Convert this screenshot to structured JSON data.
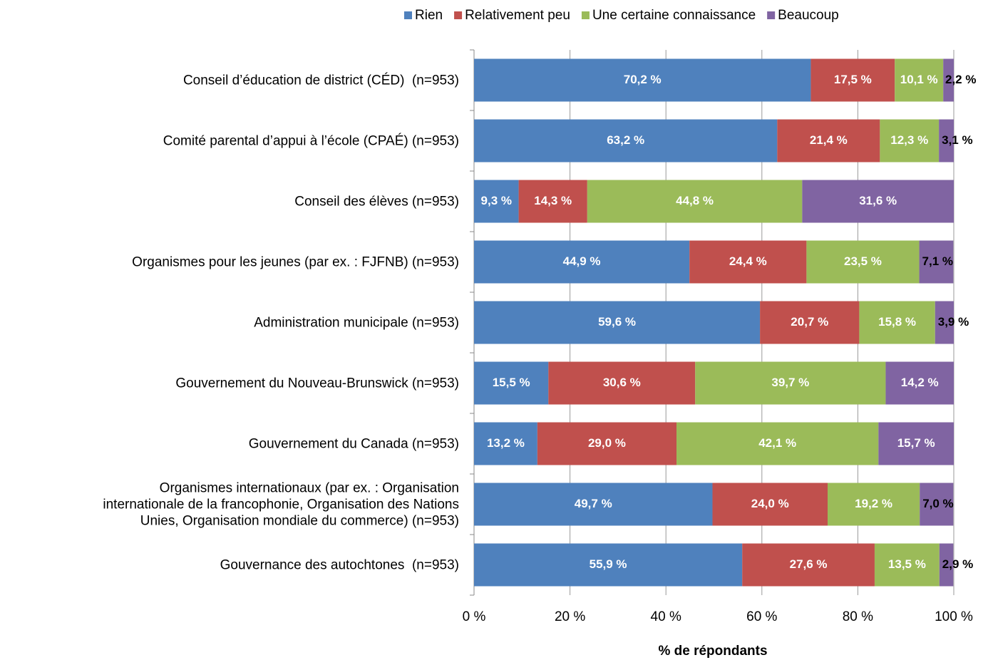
{
  "chart_data": {
    "type": "stacked_barh",
    "xlabel": "% de répondants",
    "categories": [
      "Conseil d’éducation de district (CÉD)  (n=953)",
      "Comité parental d’appui à l’école (CPAÉ) (n=953)",
      "Conseil des élèves (n=953)",
      "Organismes pour les jeunes (par ex. : FJFNB) (n=953)",
      "Administration municipale (n=953)",
      "Gouvernement du Nouveau-Brunswick (n=953)",
      "Gouvernement du Canada (n=953)",
      "Organismes internationaux (par ex. : Organisation\ninternationale de la francophonie, Organisation des Nations\nUnies, Organisation mondiale du commerce) (n=953)",
      "Gouvernance des autochtones  (n=953)"
    ],
    "series": [
      {
        "name": "Rien",
        "color": "#4f81bd",
        "values": [
          70.2,
          63.2,
          9.3,
          44.9,
          59.6,
          15.5,
          13.2,
          49.7,
          55.9
        ],
        "value_labels": [
          "70,2 %",
          "63,2 %",
          "9,3 %",
          "44,9 %",
          "59,6 %",
          "15,5 %",
          "13,2 %",
          "49,7 %",
          "55,9 %"
        ]
      },
      {
        "name": "Relativement peu",
        "color": "#c0504d",
        "values": [
          17.5,
          21.4,
          14.3,
          24.4,
          20.7,
          30.6,
          29.0,
          24.0,
          27.6
        ],
        "value_labels": [
          "17,5 %",
          "21,4 %",
          "14,3 %",
          "24,4 %",
          "20,7 %",
          "30,6 %",
          "29,0 %",
          "24,0 %",
          "27,6 %"
        ]
      },
      {
        "name": "Une certaine connaissance",
        "color": "#9bbb59",
        "values": [
          10.1,
          12.3,
          44.8,
          23.5,
          15.8,
          39.7,
          42.1,
          19.2,
          13.5
        ],
        "value_labels": [
          "10,1 %",
          "12,3 %",
          "44,8 %",
          "23,5 %",
          "15,8 %",
          "39,7 %",
          "42,1 %",
          "19,2 %",
          "13,5 %"
        ]
      },
      {
        "name": "Beaucoup",
        "color": "#8064a2",
        "values": [
          2.2,
          3.1,
          31.6,
          7.1,
          3.9,
          14.2,
          15.7,
          7.0,
          2.9
        ],
        "value_labels": [
          "2,2 %",
          "3,1 %",
          "31,6 %",
          "7,1 %",
          "3,9 %",
          "14,2 %",
          "15,7 %",
          "7,0 %",
          "2,9 %"
        ]
      }
    ],
    "xlim": [
      0,
      100
    ],
    "xticks": [
      {
        "value": 0,
        "label": "0 %"
      },
      {
        "value": 20,
        "label": "20 %"
      },
      {
        "value": 40,
        "label": "40 %"
      },
      {
        "value": 60,
        "label": "60 %"
      },
      {
        "value": 80,
        "label": "80 %"
      },
      {
        "value": 100,
        "label": "100 %"
      }
    ],
    "grid": true,
    "legend": "top"
  }
}
